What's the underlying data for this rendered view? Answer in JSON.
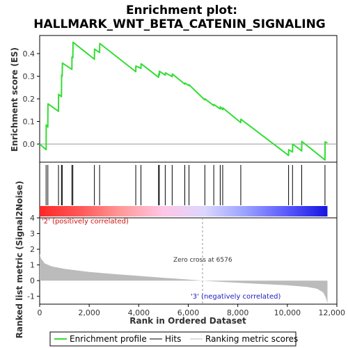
{
  "chart_data": {
    "type": "line",
    "title_line1": "Enrichment plot:",
    "title_line2": "HALLMARK_WNT_BETA_CATENIN_SIGNALING",
    "xlabel": "Rank in Ordered Dataset",
    "ylabel_top": "Enrichment score (ES)",
    "ylabel_bottom": "Ranked list metric (Signal2Noise)",
    "xlim": [
      0,
      12000
    ],
    "x_ticks": [
      0,
      2000,
      4000,
      6000,
      8000,
      10000,
      12000
    ],
    "x_tick_labels": [
      "0",
      "2,000",
      "4,000",
      "6,000",
      "8,000",
      "10,000",
      "12,000"
    ],
    "es_ylim": [
      -0.08,
      0.48
    ],
    "es_ticks": [
      0.0,
      0.1,
      0.2,
      0.3,
      0.4
    ],
    "es_tick_labels": [
      "0.0",
      "0.1",
      "0.2",
      "0.3",
      "0.4"
    ],
    "metric_ylim": [
      -1.5,
      4
    ],
    "metric_ticks": [
      -1,
      0,
      1,
      2,
      3,
      4
    ],
    "metric_tick_labels": [
      "-1",
      "0",
      "1",
      "2",
      "3",
      "4"
    ],
    "hits": [
      260,
      330,
      760,
      880,
      910,
      1300,
      1340,
      2210,
      2420,
      3880,
      4090,
      4800,
      4830,
      5070,
      5350,
      5860,
      6030,
      6670,
      7030,
      7290,
      7390,
      8120,
      10050,
      10210,
      10580,
      11520
    ],
    "es_profile": [
      [
        0,
        0.0
      ],
      [
        260,
        -0.025
      ],
      [
        265,
        0.085
      ],
      [
        330,
        0.075
      ],
      [
        335,
        0.178
      ],
      [
        760,
        0.145
      ],
      [
        765,
        0.22
      ],
      [
        880,
        0.21
      ],
      [
        885,
        0.305
      ],
      [
        910,
        0.3
      ],
      [
        915,
        0.358
      ],
      [
        1300,
        0.33
      ],
      [
        1305,
        0.385
      ],
      [
        1340,
        0.382
      ],
      [
        1345,
        0.45
      ],
      [
        2210,
        0.375
      ],
      [
        2215,
        0.42
      ],
      [
        2420,
        0.405
      ],
      [
        2425,
        0.445
      ],
      [
        3880,
        0.32
      ],
      [
        3885,
        0.345
      ],
      [
        4090,
        0.335
      ],
      [
        4095,
        0.355
      ],
      [
        4800,
        0.295
      ],
      [
        4805,
        0.31
      ],
      [
        4830,
        0.305
      ],
      [
        4835,
        0.322
      ],
      [
        5070,
        0.305
      ],
      [
        5075,
        0.315
      ],
      [
        5350,
        0.298
      ],
      [
        5355,
        0.31
      ],
      [
        5860,
        0.265
      ],
      [
        5865,
        0.27
      ],
      [
        6030,
        0.258
      ],
      [
        6035,
        0.262
      ],
      [
        6670,
        0.195
      ],
      [
        6675,
        0.2
      ],
      [
        7030,
        0.17
      ],
      [
        7035,
        0.175
      ],
      [
        7290,
        0.155
      ],
      [
        7295,
        0.165
      ],
      [
        7390,
        0.152
      ],
      [
        7395,
        0.16
      ],
      [
        8120,
        0.095
      ],
      [
        8125,
        0.11
      ],
      [
        10050,
        -0.05
      ],
      [
        10055,
        -0.025
      ],
      [
        10210,
        -0.035
      ],
      [
        10215,
        0.0
      ],
      [
        10580,
        -0.03
      ],
      [
        10585,
        0.012
      ],
      [
        11520,
        -0.07
      ],
      [
        11525,
        0.01
      ],
      [
        11620,
        0.005
      ]
    ],
    "metric_curve": [
      [
        0,
        1.7
      ],
      [
        60,
        1.4
      ],
      [
        200,
        1.1
      ],
      [
        500,
        0.9
      ],
      [
        1000,
        0.75
      ],
      [
        2000,
        0.55
      ],
      [
        3000,
        0.42
      ],
      [
        4000,
        0.3
      ],
      [
        5000,
        0.18
      ],
      [
        6000,
        0.07
      ],
      [
        6576,
        0.0
      ],
      [
        7000,
        -0.05
      ],
      [
        8000,
        -0.14
      ],
      [
        9000,
        -0.22
      ],
      [
        10000,
        -0.3
      ],
      [
        10800,
        -0.4
      ],
      [
        11200,
        -0.52
      ],
      [
        11450,
        -0.75
      ],
      [
        11560,
        -1.1
      ],
      [
        11620,
        -1.45
      ]
    ],
    "n_genes": 11620,
    "zero_cross": 6576,
    "zero_cross_label": "Zero cross at 6576",
    "pos_label": "'2' (positively correlated)",
    "neg_label": "'3' (negatively correlated)",
    "colors": {
      "es_line": "#33dd33",
      "hit": "#000000",
      "metric_fill": "#bbbbbb",
      "grid_zero": "#999999",
      "bar_stops": [
        "#ff2828",
        "#ff5858",
        "#ff9a9a",
        "#ffc6e6",
        "#dcd6ff",
        "#9aa2ff",
        "#5a5aff",
        "#1515e0"
      ]
    },
    "legend": [
      {
        "label": "Enrichment profile",
        "kind": "es"
      },
      {
        "label": "Hits",
        "kind": "hit"
      },
      {
        "label": "Ranking metric scores",
        "kind": "metric"
      }
    ]
  }
}
